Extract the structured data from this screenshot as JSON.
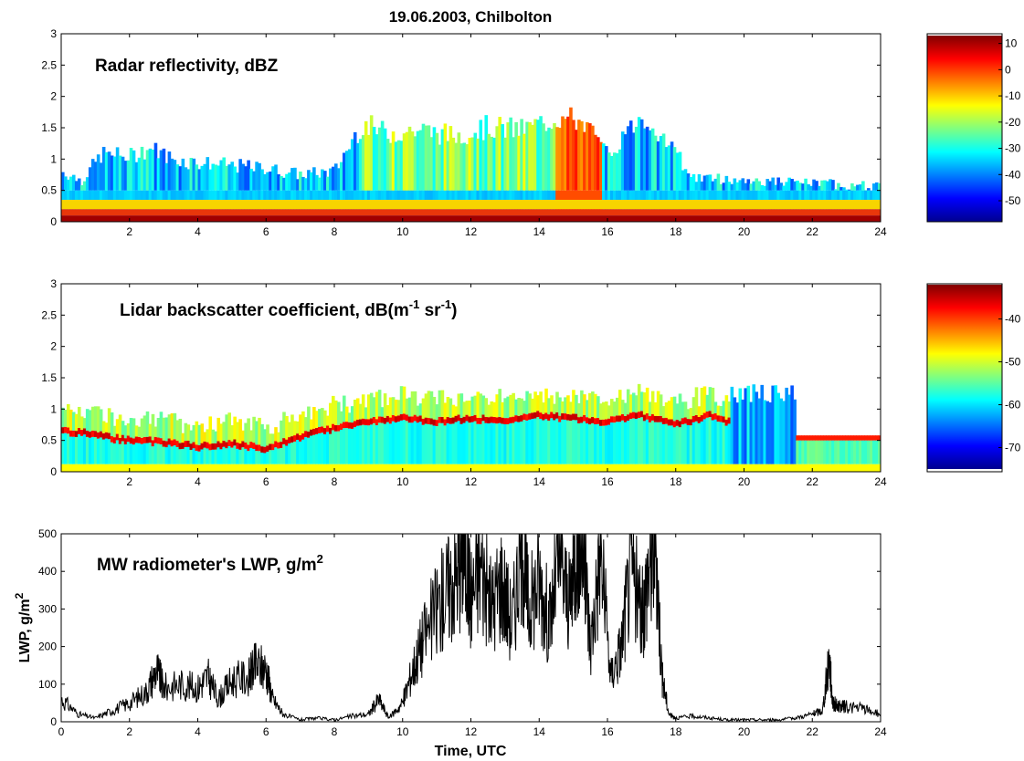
{
  "figure": {
    "title": "19.06.2003, Chilbolton"
  },
  "chart_data": [
    {
      "type": "heatmap",
      "label_main": "Radar reflectivity, dBZ",
      "xlim": [
        0,
        24
      ],
      "xticks": [
        2,
        4,
        6,
        8,
        10,
        12,
        14,
        16,
        18,
        20,
        22,
        24
      ],
      "ylim": [
        0,
        3
      ],
      "yticks": [
        0,
        0.5,
        1,
        1.5,
        2,
        2.5,
        3
      ],
      "colorbar": {
        "range": [
          -58,
          13
        ],
        "ticks": [
          10,
          0,
          -10,
          -20,
          -30,
          -40,
          -50
        ]
      },
      "tops": [
        {
          "x": 0,
          "y": 0.85
        },
        {
          "x": 0.6,
          "y": 0.7
        },
        {
          "x": 1.2,
          "y": 1.15
        },
        {
          "x": 2,
          "y": 1.1
        },
        {
          "x": 2.6,
          "y": 1.25
        },
        {
          "x": 3.3,
          "y": 1.05
        },
        {
          "x": 4,
          "y": 1.0
        },
        {
          "x": 5,
          "y": 0.95
        },
        {
          "x": 6,
          "y": 0.9
        },
        {
          "x": 7,
          "y": 0.8
        },
        {
          "x": 8,
          "y": 0.85
        },
        {
          "x": 8.8,
          "y": 1.65
        },
        {
          "x": 9.5,
          "y": 1.5
        },
        {
          "x": 10.5,
          "y": 1.55
        },
        {
          "x": 11.5,
          "y": 1.45
        },
        {
          "x": 12.5,
          "y": 1.6
        },
        {
          "x": 13.5,
          "y": 1.55
        },
        {
          "x": 14.5,
          "y": 1.75
        },
        {
          "x": 15.3,
          "y": 1.7
        },
        {
          "x": 16,
          "y": 1.1
        },
        {
          "x": 17,
          "y": 1.8
        },
        {
          "x": 17.7,
          "y": 1.4
        },
        {
          "x": 18.5,
          "y": 0.75
        },
        {
          "x": 20,
          "y": 0.7
        },
        {
          "x": 22,
          "y": 0.65
        },
        {
          "x": 24,
          "y": 0.6
        }
      ]
    },
    {
      "type": "heatmap",
      "label_main": "Lidar backscatter coefficient, dB(m",
      "label_sup1": "-1",
      "label_mid": " sr",
      "label_sup2": "-1",
      "label_end": ")",
      "xlim": [
        0,
        24
      ],
      "xticks": [
        2,
        4,
        6,
        8,
        10,
        12,
        14,
        16,
        18,
        20,
        22,
        24
      ],
      "ylim": [
        0,
        3
      ],
      "yticks": [
        0,
        0.5,
        1,
        1.5,
        2,
        2.5,
        3
      ],
      "colorbar": {
        "range": [
          -75,
          -32
        ],
        "ticks": [
          -40,
          -50,
          -60,
          -70
        ]
      },
      "cloud_base": [
        {
          "x": 0,
          "y": 0.6
        },
        {
          "x": 1,
          "y": 0.55
        },
        {
          "x": 1.5,
          "y": 0.48
        },
        {
          "x": 3,
          "y": 0.42
        },
        {
          "x": 4,
          "y": 0.35
        },
        {
          "x": 5,
          "y": 0.4
        },
        {
          "x": 6,
          "y": 0.32
        },
        {
          "x": 7,
          "y": 0.5
        },
        {
          "x": 8,
          "y": 0.65
        },
        {
          "x": 9,
          "y": 0.75
        },
        {
          "x": 10,
          "y": 0.8
        },
        {
          "x": 11,
          "y": 0.75
        },
        {
          "x": 12,
          "y": 0.8
        },
        {
          "x": 13,
          "y": 0.75
        },
        {
          "x": 14,
          "y": 0.85
        },
        {
          "x": 15,
          "y": 0.8
        },
        {
          "x": 16,
          "y": 0.75
        },
        {
          "x": 17,
          "y": 0.85
        },
        {
          "x": 18,
          "y": 0.7
        },
        {
          "x": 19,
          "y": 0.85
        },
        {
          "x": 19.5,
          "y": 0.75
        }
      ]
    },
    {
      "type": "line",
      "label_main": "MW radiometer's LWP, g/m",
      "label_sup": "2",
      "xlabel": "Time, UTC",
      "ylabel": "LWP, g/m",
      "ylabel_sup": "2",
      "xlim": [
        0,
        24
      ],
      "xticks": [
        0,
        2,
        4,
        6,
        8,
        10,
        12,
        14,
        16,
        18,
        20,
        22,
        24
      ],
      "ylim": [
        0,
        500
      ],
      "yticks": [
        0,
        100,
        200,
        300,
        400,
        500
      ],
      "series": [
        {
          "values_x": [
            0,
            0.5,
            1,
            1.5,
            2,
            2.5,
            2.8,
            3,
            3.5,
            4,
            4.3,
            4.6,
            5,
            5.5,
            5.7,
            6,
            6.2,
            6.5,
            7,
            7.5,
            8,
            8.5,
            9,
            9.3,
            9.6,
            10,
            10.3,
            10.6,
            11,
            11.3,
            11.6,
            11.8,
            12,
            12.3,
            12.6,
            12.9,
            13.2,
            13.5,
            13.7,
            14,
            14.3,
            14.6,
            14.9,
            15.1,
            15.3,
            15.5,
            15.8,
            16.1,
            16.4,
            16.7,
            17,
            17.2,
            17.4,
            17.6,
            17.8,
            18,
            18.5,
            19,
            19.5,
            20,
            20.5,
            21,
            21.5,
            22,
            22.3,
            22.5,
            22.6,
            22.8,
            23,
            23.5,
            24
          ],
          "values_y": [
            60,
            20,
            10,
            30,
            50,
            80,
            140,
            90,
            100,
            90,
            120,
            60,
            110,
            120,
            150,
            140,
            60,
            20,
            5,
            10,
            5,
            15,
            20,
            60,
            10,
            50,
            140,
            220,
            300,
            350,
            400,
            470,
            330,
            420,
            300,
            380,
            260,
            480,
            300,
            380,
            260,
            440,
            300,
            500,
            470,
            200,
            450,
            120,
            200,
            420,
            270,
            400,
            490,
            120,
            20,
            10,
            15,
            10,
            5,
            5,
            5,
            5,
            10,
            20,
            30,
            170,
            50,
            40,
            40,
            35,
            20
          ]
        }
      ]
    }
  ]
}
